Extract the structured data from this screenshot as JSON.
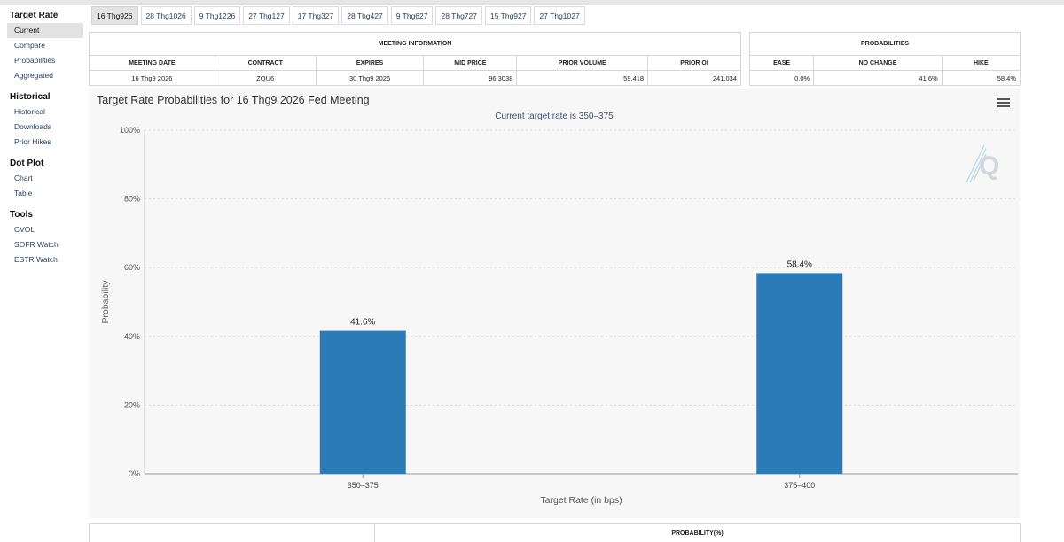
{
  "sidebar": {
    "sections": [
      {
        "title": "Target Rate",
        "items": [
          "Current",
          "Compare",
          "Probabilities",
          "Aggregated"
        ]
      },
      {
        "title": "Historical",
        "items": [
          "Historical",
          "Downloads",
          "Prior Hikes"
        ]
      },
      {
        "title": "Dot Plot",
        "items": [
          "Chart",
          "Table"
        ]
      },
      {
        "title": "Tools",
        "items": [
          "CVOL",
          "SOFR Watch",
          "ESTR Watch"
        ]
      }
    ],
    "active_item": "Current"
  },
  "tabs": [
    "16 Thg926",
    "28 Thg1026",
    "9 Thg1226",
    "27 Thg127",
    "17 Thg327",
    "28 Thg427",
    "9 Thg627",
    "28 Thg727",
    "15 Thg927",
    "27 Thg1027"
  ],
  "active_tab": "16 Thg926",
  "meeting_info": {
    "header": "MEETING INFORMATION",
    "columns": [
      "MEETING DATE",
      "CONTRACT",
      "EXPIRES",
      "MID PRICE",
      "PRIOR VOLUME",
      "PRIOR OI"
    ],
    "row": [
      "16 Thg9 2026",
      "ZQU6",
      "30 Thg9 2026",
      "96,3038",
      "59.418",
      "241.034"
    ]
  },
  "probabilities": {
    "header": "PROBABILITIES",
    "columns": [
      "EASE",
      "NO CHANGE",
      "HIKE"
    ],
    "row": [
      "0,0%",
      "41,6%",
      "58,4%"
    ]
  },
  "chart": {
    "title": "Target Rate Probabilities for 16 Thg9 2026 Fed Meeting",
    "subtitle": "Current target rate is 350–375",
    "menu_icon": "hamburger-menu-icon",
    "watermark_icon": "q-logo-icon",
    "bar_color": "#2b7bb9"
  },
  "chart_data": {
    "type": "bar",
    "categories": [
      "350–375",
      "375–400"
    ],
    "values": [
      41.6,
      58.4
    ],
    "data_labels": [
      "41.6%",
      "58.4%"
    ],
    "xlabel": "Target Rate (in bps)",
    "ylabel": "Probability",
    "ylim": [
      0,
      100
    ],
    "yticks": [
      "0%",
      "20%",
      "40%",
      "60%",
      "80%",
      "100%"
    ],
    "grid": true
  },
  "bottom_table": {
    "header": "PROBABILITY(%)"
  }
}
